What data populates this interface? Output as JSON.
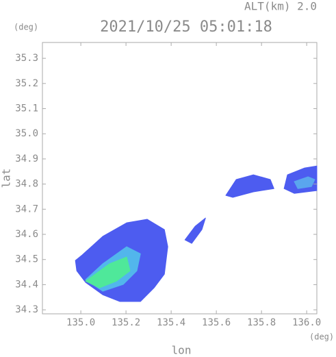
{
  "chart_data": {
    "type": "heatmap",
    "title": "2021/10/25 05:01:18",
    "subtitle": "ALT(km) 2.0",
    "xlabel": "lon",
    "ylabel": "lat",
    "xunit": "(deg)",
    "yunit": "(deg)",
    "xlim": [
      134.83,
      136.045
    ],
    "ylim": [
      34.284,
      35.363
    ],
    "xticks": [
      {
        "value": 135,
        "label": "135.0"
      },
      135.2,
      135.4,
      135.6,
      135.8,
      {
        "value": 136,
        "label": "136.0"
      }
    ],
    "yticks": [
      34.3,
      34.4,
      34.5,
      34.6,
      34.7,
      34.8,
      34.9,
      {
        "value": 35,
        "label": "35.0"
      },
      35.1,
      35.2,
      35.3
    ],
    "regions": [
      {
        "color": "#4d5cf0",
        "lon": [
          134.976,
          135.006,
          135.097,
          135.203,
          135.294,
          135.37,
          135.385,
          135.37,
          135.324,
          135.264,
          135.173,
          135.097,
          135.021,
          134.982
        ],
        "lat": [
          34.496,
          34.518,
          34.592,
          34.646,
          34.66,
          34.619,
          34.551,
          34.442,
          34.387,
          34.333,
          34.333,
          34.36,
          34.409,
          34.455
        ]
      },
      {
        "color": "#52b6ec",
        "lon": [
          135.021,
          135.097,
          135.203,
          135.264,
          135.248,
          135.188,
          135.097
        ],
        "lat": [
          34.42,
          34.483,
          34.551,
          34.523,
          34.455,
          34.401,
          34.374
        ]
      },
      {
        "color": "#4fe89a",
        "lon": [
          135.021,
          135.127,
          135.203,
          135.218,
          135.158,
          135.082
        ],
        "lat": [
          34.414,
          34.483,
          34.51,
          34.455,
          34.414,
          34.387
        ]
      },
      {
        "color": "#4d5cf0",
        "lon": [
          135.915,
          135.991,
          136.045,
          136.045,
          135.945,
          135.9
        ],
        "lat": [
          34.837,
          34.864,
          34.872,
          34.774,
          34.763,
          34.782
        ]
      },
      {
        "color": "#5aa6ee",
        "lon": [
          135.945,
          136.006,
          136.036,
          136.021,
          135.961
        ],
        "lat": [
          34.81,
          34.829,
          34.818,
          34.79,
          34.782
        ]
      },
      {
        "color": "#4d5cf0",
        "lon": [
          135.642,
          135.688,
          135.764,
          135.839,
          135.855,
          135.764,
          135.673
        ],
        "lat": [
          34.755,
          34.818,
          34.837,
          34.818,
          34.782,
          34.769,
          34.747
        ]
      },
      {
        "color": "#4d5cf0",
        "lon": [
          135.461,
          135.506,
          135.552,
          135.536,
          135.491
        ],
        "lat": [
          34.578,
          34.632,
          34.665,
          34.619,
          34.564
        ]
      }
    ]
  }
}
